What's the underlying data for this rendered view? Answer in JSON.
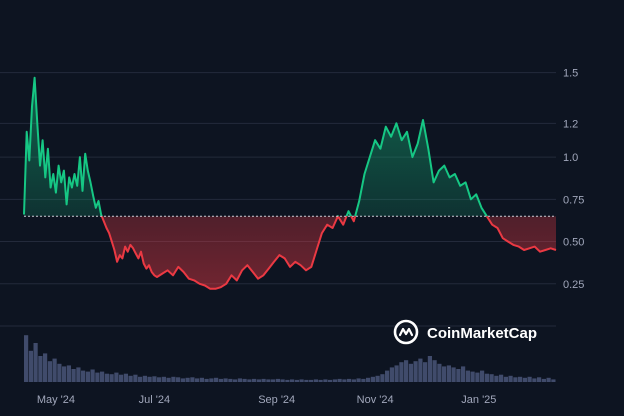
{
  "chart_data": {
    "type": "line",
    "baseline": 0.65,
    "ylim": [
      0,
      1.8
    ],
    "y_ticks": [
      "1.5",
      "1.2",
      "1.0",
      "0.75",
      "0.50",
      "0.25"
    ],
    "y_tick_values": [
      1.5,
      1.2,
      1.0,
      0.75,
      0.5,
      0.25
    ],
    "x_ticks": [
      "May '24",
      "Jul '24",
      "Sep '24",
      "Nov '24",
      "Jan '25"
    ],
    "x_tick_values": [
      0.06,
      0.245,
      0.475,
      0.66,
      0.855
    ],
    "series": [
      {
        "x": [
          0.0,
          0.005,
          0.01,
          0.015,
          0.02,
          0.025,
          0.03,
          0.035,
          0.04,
          0.045,
          0.05,
          0.055,
          0.06,
          0.065,
          0.07,
          0.075,
          0.08,
          0.085,
          0.09,
          0.095,
          0.1,
          0.105,
          0.11,
          0.115,
          0.12,
          0.125,
          0.13,
          0.135,
          0.14,
          0.145,
          0.15,
          0.155,
          0.16,
          0.165,
          0.17,
          0.175,
          0.18,
          0.185,
          0.19,
          0.195,
          0.2,
          0.205,
          0.21,
          0.215,
          0.22,
          0.225,
          0.23,
          0.235,
          0.24,
          0.245,
          0.25,
          0.26,
          0.27,
          0.28,
          0.29,
          0.3,
          0.31,
          0.32,
          0.33,
          0.34,
          0.35,
          0.36,
          0.37,
          0.38,
          0.39,
          0.4,
          0.41,
          0.42,
          0.43,
          0.44,
          0.45,
          0.46,
          0.47,
          0.48,
          0.49,
          0.5,
          0.51,
          0.52,
          0.53,
          0.54,
          0.55,
          0.56,
          0.57,
          0.58,
          0.59,
          0.6,
          0.61,
          0.62,
          0.63,
          0.64,
          0.65,
          0.66,
          0.67,
          0.68,
          0.69,
          0.7,
          0.71,
          0.72,
          0.73,
          0.74,
          0.75,
          0.76,
          0.77,
          0.78,
          0.79,
          0.8,
          0.81,
          0.82,
          0.83,
          0.84,
          0.85,
          0.86,
          0.87,
          0.88,
          0.89,
          0.9,
          0.91,
          0.92,
          0.93,
          0.94,
          0.95,
          0.96,
          0.97,
          0.98,
          0.99,
          1.0
        ],
        "y": [
          0.66,
          1.15,
          0.98,
          1.3,
          1.47,
          1.2,
          0.95,
          1.1,
          0.88,
          1.05,
          0.82,
          0.9,
          0.79,
          0.95,
          0.85,
          0.92,
          0.72,
          0.88,
          0.82,
          0.9,
          0.83,
          1.0,
          0.8,
          1.02,
          0.92,
          0.85,
          0.77,
          0.7,
          0.74,
          0.66,
          0.62,
          0.58,
          0.55,
          0.5,
          0.45,
          0.38,
          0.42,
          0.4,
          0.47,
          0.44,
          0.48,
          0.46,
          0.43,
          0.4,
          0.44,
          0.37,
          0.34,
          0.36,
          0.32,
          0.3,
          0.29,
          0.31,
          0.33,
          0.3,
          0.35,
          0.32,
          0.28,
          0.27,
          0.25,
          0.24,
          0.22,
          0.22,
          0.23,
          0.25,
          0.3,
          0.27,
          0.33,
          0.36,
          0.32,
          0.28,
          0.3,
          0.34,
          0.38,
          0.42,
          0.4,
          0.35,
          0.38,
          0.36,
          0.33,
          0.35,
          0.45,
          0.55,
          0.6,
          0.58,
          0.65,
          0.6,
          0.68,
          0.62,
          0.74,
          0.9,
          1.0,
          1.1,
          1.05,
          1.18,
          1.12,
          1.2,
          1.1,
          1.15,
          1.0,
          1.08,
          1.22,
          1.05,
          0.85,
          0.92,
          0.95,
          0.88,
          0.9,
          0.83,
          0.85,
          0.75,
          0.78,
          0.7,
          0.65,
          0.6,
          0.58,
          0.52,
          0.5,
          0.48,
          0.47,
          0.45,
          0.46,
          0.47,
          0.44,
          0.45,
          0.46,
          0.45
        ]
      }
    ],
    "volume": [
      0.9,
      0.6,
      0.75,
      0.5,
      0.55,
      0.4,
      0.45,
      0.35,
      0.3,
      0.32,
      0.25,
      0.28,
      0.22,
      0.2,
      0.24,
      0.18,
      0.2,
      0.16,
      0.15,
      0.18,
      0.14,
      0.16,
      0.12,
      0.14,
      0.1,
      0.12,
      0.1,
      0.11,
      0.09,
      0.1,
      0.08,
      0.1,
      0.09,
      0.07,
      0.08,
      0.09,
      0.07,
      0.08,
      0.06,
      0.07,
      0.08,
      0.06,
      0.07,
      0.06,
      0.05,
      0.07,
      0.06,
      0.05,
      0.06,
      0.05,
      0.06,
      0.05,
      0.05,
      0.06,
      0.05,
      0.04,
      0.05,
      0.04,
      0.05,
      0.04,
      0.04,
      0.05,
      0.04,
      0.05,
      0.04,
      0.05,
      0.06,
      0.05,
      0.06,
      0.05,
      0.07,
      0.06,
      0.08,
      0.1,
      0.12,
      0.15,
      0.22,
      0.28,
      0.32,
      0.38,
      0.42,
      0.35,
      0.4,
      0.45,
      0.38,
      0.5,
      0.42,
      0.35,
      0.3,
      0.32,
      0.28,
      0.25,
      0.3,
      0.22,
      0.2,
      0.18,
      0.22,
      0.16,
      0.15,
      0.12,
      0.14,
      0.1,
      0.12,
      0.09,
      0.1,
      0.08,
      0.1,
      0.07,
      0.09,
      0.06,
      0.08,
      0.05
    ],
    "colors": {
      "up": "#16c784",
      "down": "#ea3943",
      "background": "#0d1421",
      "grid": "#232a3b",
      "volume": "#4a5578",
      "tick_text": "#a1a7bb"
    }
  },
  "brand": {
    "name": "CoinMarketCap",
    "logo_icon": "coinmarketcap-logo-icon"
  }
}
